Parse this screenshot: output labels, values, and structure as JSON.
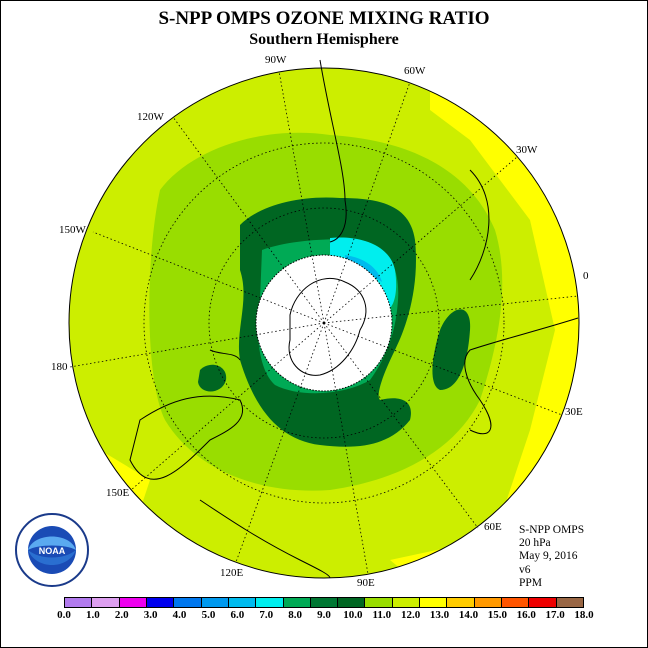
{
  "title": "S-NPP OMPS OZONE MIXING RATIO",
  "subtitle": "Southern Hemisphere",
  "longitude_labels": [
    {
      "text": "90W",
      "name": "lon-label-90w"
    },
    {
      "text": "60W",
      "name": "lon-label-60w"
    },
    {
      "text": "120W",
      "name": "lon-label-120w"
    },
    {
      "text": "30W",
      "name": "lon-label-30w"
    },
    {
      "text": "150W",
      "name": "lon-label-150w"
    },
    {
      "text": "0",
      "name": "lon-label-0"
    },
    {
      "text": "180",
      "name": "lon-label-180"
    },
    {
      "text": "30E",
      "name": "lon-label-30e"
    },
    {
      "text": "150E",
      "name": "lon-label-150e"
    },
    {
      "text": "60E",
      "name": "lon-label-60e"
    },
    {
      "text": "120E",
      "name": "lon-label-120e"
    },
    {
      "text": "90E",
      "name": "lon-label-90e"
    }
  ],
  "info": {
    "instrument": "S-NPP OMPS",
    "pressure": "20 hPa",
    "date": "May 9, 2016",
    "version": "v6",
    "units": "PPM"
  },
  "logo_text": "NOAA",
  "colorbar": {
    "labels": [
      "0.0",
      "1.0",
      "2.0",
      "3.0",
      "4.0",
      "5.0",
      "6.0",
      "7.0",
      "8.0",
      "9.0",
      "10.0",
      "11.0",
      "12.0",
      "13.0",
      "14.0",
      "15.0",
      "16.0",
      "17.0",
      "18.0"
    ],
    "colors": [
      "#b27bee",
      "#dd9ff0",
      "#ee00ee",
      "#0000ee",
      "#0077ee",
      "#0099ee",
      "#00bbee",
      "#00eeee",
      "#00aa55",
      "#007733",
      "#006622",
      "#99dd00",
      "#ccee00",
      "#ffff00",
      "#ffcc00",
      "#ff9900",
      "#ff5500",
      "#ee0000",
      "#996644"
    ]
  }
}
